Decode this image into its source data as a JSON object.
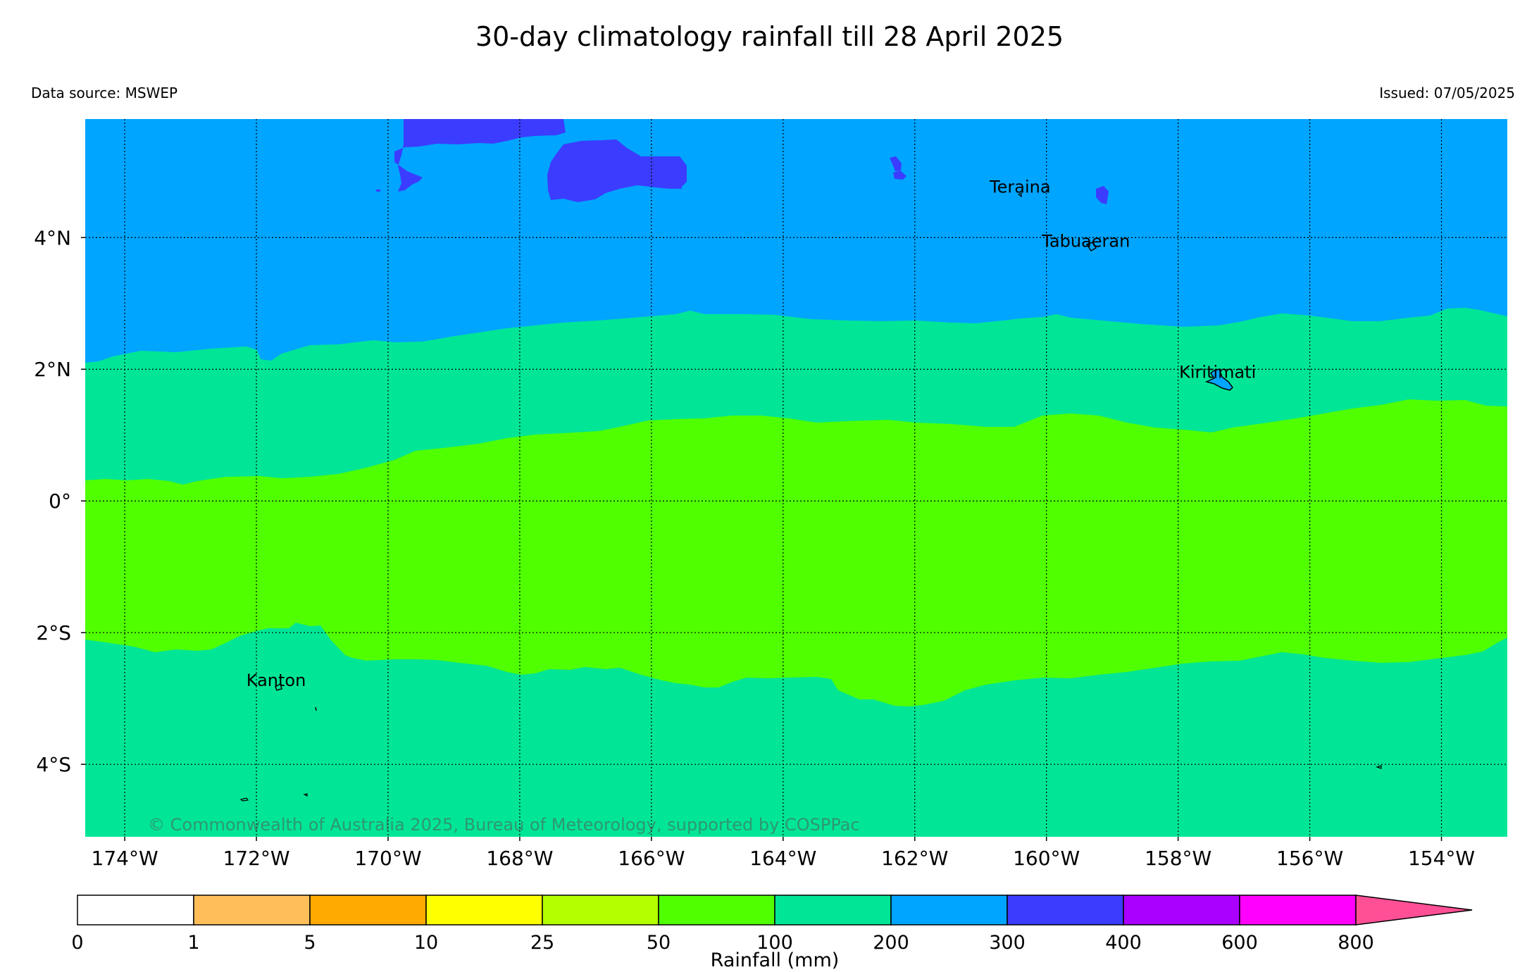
{
  "title": "30-day climatology rainfall till 28 April 2025",
  "data_source": "Data source: MSWEP",
  "issued": "Issued: 07/05/2025",
  "copyright": "© Commonwealth of Australia 2025, Bureau of Meteorology, supported by COSPPac",
  "map": {
    "lon_range": [
      -174.6,
      -153.0
    ],
    "lat_range": [
      -5.1,
      5.8
    ],
    "lon_ticks": [
      -174,
      -172,
      -170,
      -168,
      -166,
      -164,
      -162,
      -160,
      -158,
      -156,
      -154
    ],
    "lon_labels": [
      "174°W",
      "172°W",
      "170°W",
      "168°W",
      "166°W",
      "164°W",
      "162°W",
      "160°W",
      "158°W",
      "156°W",
      "154°W"
    ],
    "lat_ticks": [
      4,
      2,
      0,
      -2,
      -4
    ],
    "lat_labels": [
      "4°N",
      "2°N",
      "0°",
      "2°S",
      "4°S"
    ],
    "grid": true,
    "places": [
      {
        "name": "Teraina",
        "lon": -160.4,
        "lat": 4.68
      },
      {
        "name": "Tabuaeran",
        "lon": -159.4,
        "lat": 3.86
      },
      {
        "name": "Kiritimati",
        "lon": -157.4,
        "lat": 1.87
      },
      {
        "name": "Kanton",
        "lon": -171.7,
        "lat": -2.81
      }
    ],
    "colors": {
      "band_300_400": "#3c3cff",
      "band_200_300": "#00a5ff",
      "band_100_200": "#00e696",
      "band_50_100": "#50ff00"
    }
  },
  "colorbar": {
    "label": "Rainfall (mm)",
    "ticks": [
      "0",
      "1",
      "5",
      "10",
      "25",
      "50",
      "100",
      "200",
      "300",
      "400",
      "600",
      "800"
    ],
    "colors": [
      "#ffffff",
      "#ffbe5a",
      "#ffaa00",
      "#ffff00",
      "#b4ff00",
      "#50ff00",
      "#00e696",
      "#00a5ff",
      "#3c3cff",
      "#aa00ff",
      "#ff00ff",
      "#ff5096"
    ]
  }
}
